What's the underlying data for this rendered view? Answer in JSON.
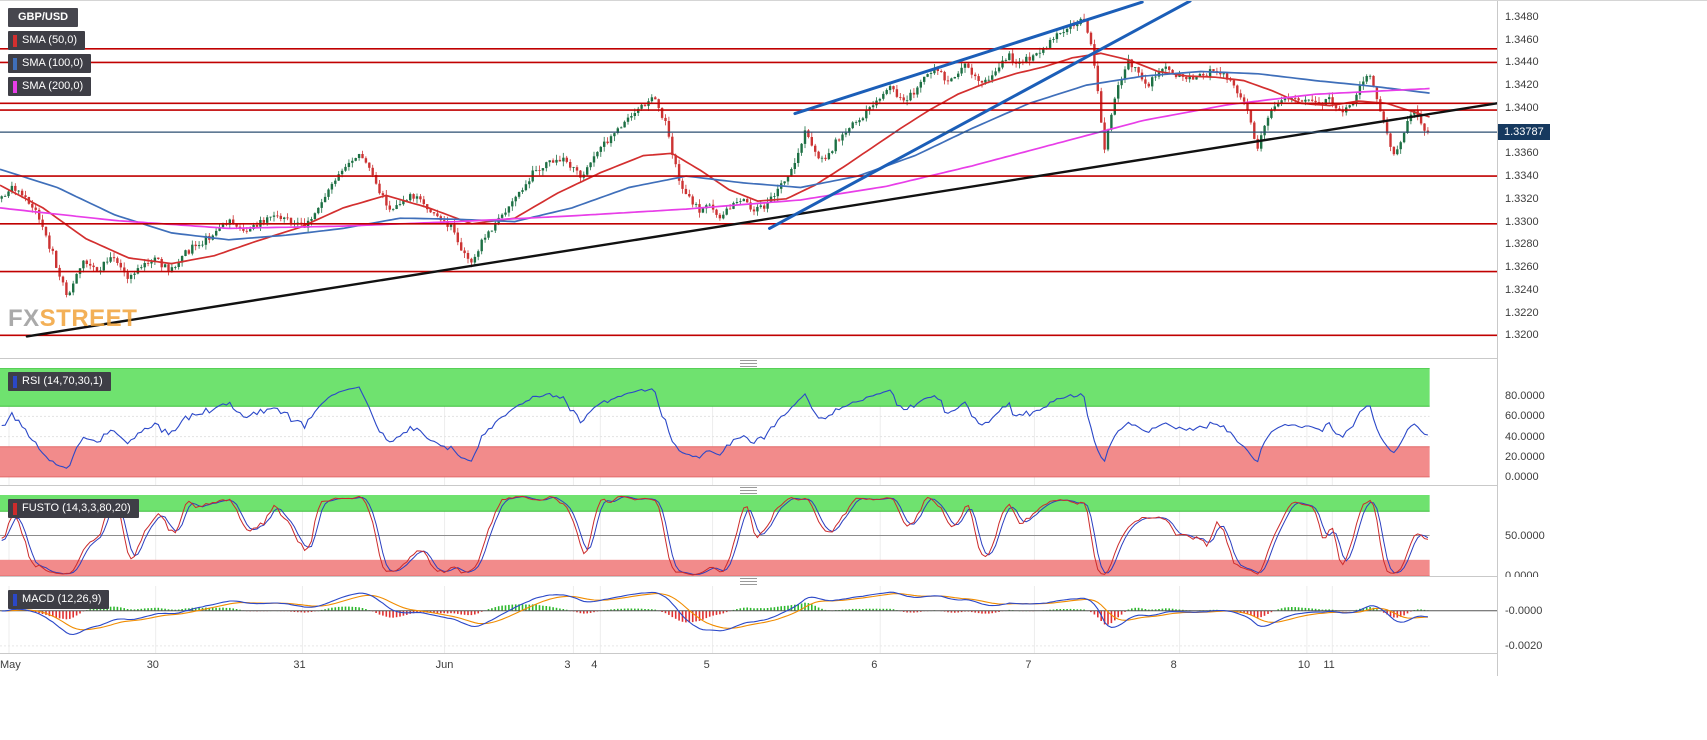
{
  "watermark": {
    "fx": "FX",
    "street": "STREET"
  },
  "main_chart": {
    "symbol": "GBP/USD",
    "sma_legend": [
      {
        "label": "SMA (50,0)"
      },
      {
        "label": "SMA (100,0)"
      },
      {
        "label": "SMA (200,0)"
      }
    ],
    "price_badge": "1.33787"
  },
  "indicator_labels": {
    "rsi": "RSI (14,70,30,1)",
    "stoch": "FUSTO (14,3,3,80,20)",
    "macd": "MACD (12,26,9)"
  },
  "chart_data": {
    "type": "candlestick",
    "symbol": "GBP/USD",
    "x_ticks": [
      {
        "label": "May",
        "f": 0.006
      },
      {
        "label": "30",
        "f": 0.104
      },
      {
        "label": "31",
        "f": 0.202
      },
      {
        "label": "Jun",
        "f": 0.297
      },
      {
        "label": "3",
        "f": 0.383
      },
      {
        "label": "4",
        "f": 0.401
      },
      {
        "label": "5",
        "f": 0.476
      },
      {
        "label": "6",
        "f": 0.588
      },
      {
        "label": "7",
        "f": 0.691
      },
      {
        "label": "8",
        "f": 0.788
      },
      {
        "label": "10",
        "f": 0.873
      },
      {
        "label": "11",
        "f": 0.89
      }
    ],
    "main": {
      "y_range": [
        1.318,
        1.3494
      ],
      "y_ticks": [
        "1.3480",
        "1.3460",
        "1.3440",
        "1.3420",
        "1.3400",
        "1.3380",
        "1.3360",
        "1.3340",
        "1.3320",
        "1.3300",
        "1.3280",
        "1.3260",
        "1.3240",
        "1.3220",
        "1.3200"
      ],
      "h_lines": [
        1.3452,
        1.344,
        1.3404,
        1.3398,
        1.334,
        1.3298,
        1.3256,
        1.32
      ],
      "h_line_color": "#c00000",
      "current_price": 1.33787,
      "current_price_line_color": "#2b4e71",
      "num_candles": 420,
      "data_width_frac": 0.955,
      "up_color": "#1d7044",
      "down_color": "#cc3333",
      "sma_colors": {
        "sma50": "#d32f2f",
        "sma100": "#3f6fba",
        "sma200": "#e83ee8"
      },
      "trend_lines": [
        {
          "color": "#111111",
          "w": 2.4,
          "x1": 0.018,
          "p1": 1.3199,
          "x2": 1.0,
          "p2": 1.3404
        },
        {
          "color": "#1b5eb8",
          "w": 3,
          "x1": 0.531,
          "p1": 1.3395,
          "x2": 0.763,
          "p2": 1.3493
        },
        {
          "color": "#1b5eb8",
          "w": 3,
          "x1": 0.514,
          "p1": 1.3294,
          "x2": 0.795,
          "p2": 1.3494
        }
      ],
      "price_path": [
        [
          0.0,
          1.3322
        ],
        [
          0.008,
          1.333
        ],
        [
          0.016,
          1.332
        ],
        [
          0.024,
          1.3308
        ],
        [
          0.032,
          1.3285
        ],
        [
          0.04,
          1.3255
        ],
        [
          0.046,
          1.3233
        ],
        [
          0.052,
          1.3252
        ],
        [
          0.058,
          1.3268
        ],
        [
          0.066,
          1.3256
        ],
        [
          0.077,
          1.327
        ],
        [
          0.088,
          1.325
        ],
        [
          0.1,
          1.3262
        ],
        [
          0.108,
          1.3268
        ],
        [
          0.118,
          1.3256
        ],
        [
          0.128,
          1.3272
        ],
        [
          0.14,
          1.3282
        ],
        [
          0.152,
          1.3292
        ],
        [
          0.16,
          1.33
        ],
        [
          0.17,
          1.3292
        ],
        [
          0.18,
          1.3297
        ],
        [
          0.19,
          1.3308
        ],
        [
          0.2,
          1.3302
        ],
        [
          0.21,
          1.3295
        ],
        [
          0.217,
          1.3302
        ],
        [
          0.225,
          1.3318
        ],
        [
          0.235,
          1.3338
        ],
        [
          0.245,
          1.3352
        ],
        [
          0.252,
          1.336
        ],
        [
          0.26,
          1.334
        ],
        [
          0.268,
          1.3318
        ],
        [
          0.273,
          1.3308
        ],
        [
          0.28,
          1.3315
        ],
        [
          0.287,
          1.3322
        ],
        [
          0.294,
          1.3318
        ],
        [
          0.3,
          1.331
        ],
        [
          0.308,
          1.3302
        ],
        [
          0.315,
          1.3295
        ],
        [
          0.322,
          1.3278
        ],
        [
          0.329,
          1.3262
        ],
        [
          0.336,
          1.328
        ],
        [
          0.344,
          1.3296
        ],
        [
          0.352,
          1.3308
        ],
        [
          0.36,
          1.3322
        ],
        [
          0.371,
          1.334
        ],
        [
          0.38,
          1.335
        ],
        [
          0.392,
          1.3356
        ],
        [
          0.4,
          1.3348
        ],
        [
          0.406,
          1.334
        ],
        [
          0.413,
          1.3352
        ],
        [
          0.42,
          1.3365
        ],
        [
          0.43,
          1.3378
        ],
        [
          0.44,
          1.3392
        ],
        [
          0.448,
          1.34
        ],
        [
          0.458,
          1.3408
        ],
        [
          0.465,
          1.3388
        ],
        [
          0.47,
          1.3362
        ],
        [
          0.476,
          1.333
        ],
        [
          0.483,
          1.3318
        ],
        [
          0.49,
          1.331
        ],
        [
          0.497,
          1.3315
        ],
        [
          0.503,
          1.3302
        ],
        [
          0.51,
          1.3312
        ],
        [
          0.517,
          1.332
        ],
        [
          0.524,
          1.3313
        ],
        [
          0.531,
          1.331
        ],
        [
          0.538,
          1.3318
        ],
        [
          0.545,
          1.3328
        ],
        [
          0.552,
          1.3342
        ],
        [
          0.558,
          1.336
        ],
        [
          0.563,
          1.3378
        ],
        [
          0.568,
          1.3368
        ],
        [
          0.573,
          1.3352
        ],
        [
          0.58,
          1.3362
        ],
        [
          0.587,
          1.3372
        ],
        [
          0.594,
          1.3382
        ],
        [
          0.601,
          1.339
        ],
        [
          0.608,
          1.34
        ],
        [
          0.615,
          1.3408
        ],
        [
          0.622,
          1.342
        ],
        [
          0.628,
          1.3412
        ],
        [
          0.633,
          1.3405
        ],
        [
          0.64,
          1.3415
        ],
        [
          0.647,
          1.3425
        ],
        [
          0.654,
          1.3435
        ],
        [
          0.66,
          1.3428
        ],
        [
          0.664,
          1.3422
        ],
        [
          0.67,
          1.3432
        ],
        [
          0.675,
          1.344
        ],
        [
          0.682,
          1.343
        ],
        [
          0.689,
          1.3422
        ],
        [
          0.695,
          1.343
        ],
        [
          0.7,
          1.3438
        ],
        [
          0.706,
          1.3445
        ],
        [
          0.712,
          1.344
        ],
        [
          0.72,
          1.3442
        ],
        [
          0.727,
          1.3448
        ],
        [
          0.733,
          1.3455
        ],
        [
          0.738,
          1.3462
        ],
        [
          0.745,
          1.3468
        ],
        [
          0.752,
          1.3475
        ],
        [
          0.759,
          1.3479
        ],
        [
          0.764,
          1.3455
        ],
        [
          0.768,
          1.342
        ],
        [
          0.773,
          1.3365
        ],
        [
          0.778,
          1.3395
        ],
        [
          0.784,
          1.3425
        ],
        [
          0.79,
          1.3442
        ],
        [
          0.797,
          1.343
        ],
        [
          0.804,
          1.342
        ],
        [
          0.81,
          1.343
        ],
        [
          0.815,
          1.3436
        ],
        [
          0.822,
          1.343
        ],
        [
          0.829,
          1.3428
        ],
        [
          0.836,
          1.3425
        ],
        [
          0.843,
          1.3428
        ],
        [
          0.85,
          1.3432
        ],
        [
          0.857,
          1.3428
        ],
        [
          0.864,
          1.342
        ],
        [
          0.871,
          1.3408
        ],
        [
          0.876,
          1.3388
        ],
        [
          0.88,
          1.3362
        ],
        [
          0.885,
          1.338
        ],
        [
          0.89,
          1.3398
        ],
        [
          0.895,
          1.3405
        ],
        [
          0.902,
          1.3408
        ],
        [
          0.91,
          1.3405
        ],
        [
          0.916,
          1.3408
        ],
        [
          0.922,
          1.3404
        ],
        [
          0.93,
          1.3407
        ],
        [
          0.936,
          1.34
        ],
        [
          0.941,
          1.3397
        ],
        [
          0.946,
          1.3403
        ],
        [
          0.952,
          1.3418
        ],
        [
          0.958,
          1.3432
        ],
        [
          0.963,
          1.3415
        ],
        [
          0.968,
          1.3392
        ],
        [
          0.973,
          1.3368
        ],
        [
          0.977,
          1.336
        ],
        [
          0.982,
          1.3375
        ],
        [
          0.987,
          1.3392
        ],
        [
          0.991,
          1.3398
        ],
        [
          0.995,
          1.3385
        ],
        [
          1.0,
          1.3379
        ]
      ],
      "sma50": [
        [
          0,
          1.3332
        ],
        [
          0.03,
          1.3312
        ],
        [
          0.06,
          1.3285
        ],
        [
          0.09,
          1.3268
        ],
        [
          0.12,
          1.3263
        ],
        [
          0.15,
          1.327
        ],
        [
          0.18,
          1.3283
        ],
        [
          0.21,
          1.3295
        ],
        [
          0.24,
          1.3312
        ],
        [
          0.27,
          1.3323
        ],
        [
          0.3,
          1.3312
        ],
        [
          0.33,
          1.3298
        ],
        [
          0.36,
          1.3303
        ],
        [
          0.39,
          1.3325
        ],
        [
          0.42,
          1.3343
        ],
        [
          0.45,
          1.3358
        ],
        [
          0.47,
          1.336
        ],
        [
          0.49,
          1.3345
        ],
        [
          0.51,
          1.3328
        ],
        [
          0.53,
          1.3318
        ],
        [
          0.55,
          1.332
        ],
        [
          0.57,
          1.3332
        ],
        [
          0.59,
          1.3348
        ],
        [
          0.61,
          1.3365
        ],
        [
          0.63,
          1.3382
        ],
        [
          0.65,
          1.3398
        ],
        [
          0.67,
          1.3412
        ],
        [
          0.69,
          1.3422
        ],
        [
          0.71,
          1.343
        ],
        [
          0.73,
          1.3436
        ],
        [
          0.75,
          1.3444
        ],
        [
          0.77,
          1.3448
        ],
        [
          0.79,
          1.3442
        ],
        [
          0.81,
          1.3432
        ],
        [
          0.83,
          1.3428
        ],
        [
          0.85,
          1.3427
        ],
        [
          0.87,
          1.3424
        ],
        [
          0.89,
          1.3415
        ],
        [
          0.91,
          1.3404
        ],
        [
          0.93,
          1.3402
        ],
        [
          0.95,
          1.3406
        ],
        [
          0.97,
          1.3404
        ],
        [
          1.0,
          1.3392
        ]
      ],
      "sma100": [
        [
          0,
          1.3346
        ],
        [
          0.04,
          1.333
        ],
        [
          0.08,
          1.3306
        ],
        [
          0.12,
          1.329
        ],
        [
          0.16,
          1.3284
        ],
        [
          0.2,
          1.3288
        ],
        [
          0.24,
          1.3294
        ],
        [
          0.28,
          1.3303
        ],
        [
          0.32,
          1.3302
        ],
        [
          0.36,
          1.33
        ],
        [
          0.4,
          1.3312
        ],
        [
          0.44,
          1.333
        ],
        [
          0.48,
          1.334
        ],
        [
          0.52,
          1.3334
        ],
        [
          0.56,
          1.333
        ],
        [
          0.6,
          1.334
        ],
        [
          0.64,
          1.3358
        ],
        [
          0.68,
          1.3382
        ],
        [
          0.72,
          1.3404
        ],
        [
          0.76,
          1.342
        ],
        [
          0.8,
          1.3428
        ],
        [
          0.84,
          1.3432
        ],
        [
          0.88,
          1.343
        ],
        [
          0.92,
          1.3424
        ],
        [
          0.96,
          1.3419
        ],
        [
          1.0,
          1.3413
        ]
      ],
      "sma200": [
        [
          0,
          1.3312
        ],
        [
          0.08,
          1.3301
        ],
        [
          0.16,
          1.3294
        ],
        [
          0.24,
          1.3296
        ],
        [
          0.32,
          1.33
        ],
        [
          0.4,
          1.3305
        ],
        [
          0.48,
          1.3311
        ],
        [
          0.56,
          1.3319
        ],
        [
          0.62,
          1.3331
        ],
        [
          0.68,
          1.3349
        ],
        [
          0.74,
          1.3369
        ],
        [
          0.8,
          1.3389
        ],
        [
          0.86,
          1.3403
        ],
        [
          0.92,
          1.3412
        ],
        [
          1.0,
          1.3417
        ]
      ]
    },
    "rsi": {
      "period": 14,
      "range": [
        -8,
        108
      ],
      "y_ticks": [
        {
          "v": 80,
          "label": "80.0000"
        },
        {
          "v": 60,
          "label": "60.0000"
        },
        {
          "v": 40,
          "label": "40.0000"
        },
        {
          "v": 20,
          "label": "20.0000"
        },
        {
          "v": 0,
          "label": "0.0000"
        }
      ],
      "bands": [
        [
          70,
          108,
          "#6fe26f",
          "#3ebf3e"
        ],
        [
          0,
          30,
          "#f28b8b",
          "#e26b6b"
        ]
      ],
      "line_color": "#2b48c8"
    },
    "stoch": {
      "period": 14,
      "smooth": 3,
      "range": [
        0,
        100
      ],
      "mid": 50,
      "y_ticks": [
        {
          "v": 50,
          "label": "50.0000"
        },
        {
          "v": 0,
          "label": "0.0000"
        }
      ],
      "bands": [
        [
          80,
          100,
          "#6fe26f",
          "#3ebf3e"
        ],
        [
          0,
          20,
          "#f28b8b",
          "#e26b6b"
        ]
      ],
      "k_color": "#cc2b2b",
      "d_color": "#2b3fc0"
    },
    "macd": {
      "fast": 12,
      "slow": 26,
      "signal": 9,
      "range": [
        -0.0024,
        0.0014
      ],
      "y_ticks": [
        {
          "v": 0,
          "label": "-0.0000"
        },
        {
          "v": -0.002,
          "label": "-0.0020"
        }
      ],
      "line_color": "#2b48c8",
      "signal_color": "#f08c00",
      "hist_up": "#2eb82e",
      "hist_down": "#e03131",
      "zero_line_color": "#555555"
    }
  }
}
